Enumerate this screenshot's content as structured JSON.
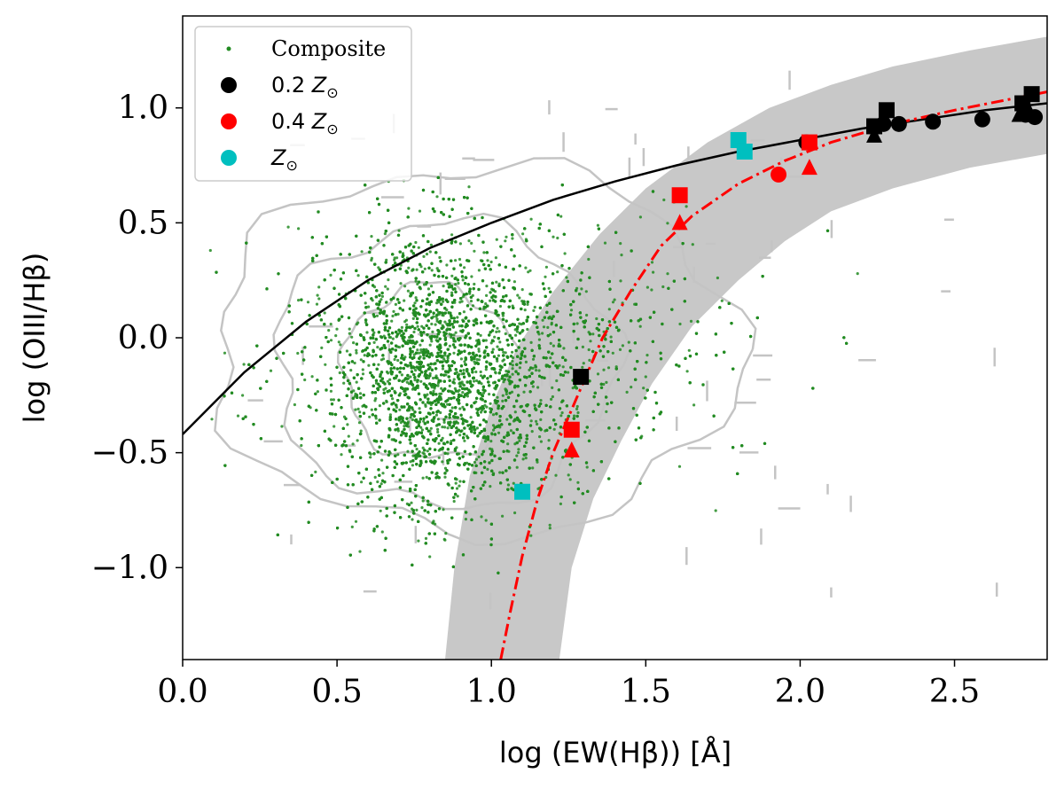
{
  "chart_data": {
    "type": "scatter",
    "xlabel": "log (EW(Hβ)) [Å]",
    "ylabel": "log (OIII/Hβ)",
    "xlim": [
      0.0,
      2.8
    ],
    "ylim": [
      -1.4,
      1.4
    ],
    "xticks": [
      0.0,
      0.5,
      1.0,
      1.5,
      2.0,
      2.5
    ],
    "xtick_labels": [
      "0.0",
      "0.5",
      "1.0",
      "1.5",
      "2.0",
      "2.5"
    ],
    "yticks": [
      -1.0,
      -0.5,
      0.0,
      0.5,
      1.0
    ],
    "ytick_labels": [
      "−1.0",
      "−0.5",
      "0.0",
      "0.5",
      "1.0"
    ],
    "legend_position": "top-left",
    "legend": [
      {
        "label": "Composite",
        "marker": "dot",
        "color": "#228B22"
      },
      {
        "label": "0.2 Z",
        "sub": "⊙",
        "marker": "circle",
        "color": "#000000"
      },
      {
        "label": "0.4 Z",
        "sub": "⊙",
        "marker": "circle",
        "color": "#ff0000"
      },
      {
        "label": "Z",
        "sub": "⊙",
        "marker": "circle",
        "color": "#00bfbf"
      }
    ],
    "composite": {
      "color": "#228B22",
      "count": 9000,
      "center": [
        0.82,
        -0.15
      ],
      "spread": [
        0.17,
        0.3
      ],
      "range_x": [
        0.08,
        2.5
      ],
      "range_y": [
        -1.15,
        0.72
      ],
      "note": "dense cloud of composite galaxies"
    },
    "black_curve": {
      "color": "#000000",
      "style": "solid",
      "points": [
        [
          0.0,
          -0.42
        ],
        [
          0.2,
          -0.15
        ],
        [
          0.4,
          0.07
        ],
        [
          0.6,
          0.25
        ],
        [
          0.8,
          0.39
        ],
        [
          1.0,
          0.5
        ],
        [
          1.2,
          0.6
        ],
        [
          1.4,
          0.68
        ],
        [
          1.6,
          0.75
        ],
        [
          1.8,
          0.81
        ],
        [
          2.0,
          0.86
        ],
        [
          2.2,
          0.91
        ],
        [
          2.4,
          0.95
        ],
        [
          2.6,
          0.99
        ],
        [
          2.8,
          1.02
        ]
      ]
    },
    "red_curve": {
      "color": "#ff0000",
      "style": "dashdot",
      "points": [
        [
          1.03,
          -1.4
        ],
        [
          1.06,
          -1.2
        ],
        [
          1.1,
          -0.95
        ],
        [
          1.15,
          -0.7
        ],
        [
          1.2,
          -0.5
        ],
        [
          1.28,
          -0.25
        ],
        [
          1.36,
          0.0
        ],
        [
          1.45,
          0.2
        ],
        [
          1.55,
          0.4
        ],
        [
          1.65,
          0.53
        ],
        [
          1.8,
          0.67
        ],
        [
          1.95,
          0.77
        ],
        [
          2.1,
          0.85
        ],
        [
          2.3,
          0.93
        ],
        [
          2.5,
          0.99
        ],
        [
          2.8,
          1.07
        ]
      ]
    },
    "band": {
      "color": "#c8c8c8",
      "upper": [
        [
          0.85,
          -1.4
        ],
        [
          0.88,
          -1.0
        ],
        [
          0.93,
          -0.6
        ],
        [
          1.0,
          -0.3
        ],
        [
          1.08,
          -0.05
        ],
        [
          1.2,
          0.2
        ],
        [
          1.35,
          0.45
        ],
        [
          1.5,
          0.65
        ],
        [
          1.7,
          0.85
        ],
        [
          1.9,
          1.0
        ],
        [
          2.1,
          1.1
        ],
        [
          2.3,
          1.18
        ],
        [
          2.55,
          1.25
        ],
        [
          2.8,
          1.31
        ]
      ],
      "lower": [
        [
          1.22,
          -1.4
        ],
        [
          1.26,
          -1.0
        ],
        [
          1.33,
          -0.7
        ],
        [
          1.42,
          -0.45
        ],
        [
          1.52,
          -0.2
        ],
        [
          1.65,
          0.05
        ],
        [
          1.8,
          0.25
        ],
        [
          1.95,
          0.42
        ],
        [
          2.1,
          0.55
        ],
        [
          2.3,
          0.65
        ],
        [
          2.55,
          0.74
        ],
        [
          2.8,
          0.8
        ]
      ]
    },
    "markers": [
      {
        "x": 1.29,
        "y": -0.17,
        "shape": "square",
        "color": "#000000"
      },
      {
        "x": 2.24,
        "y": 0.92,
        "shape": "square",
        "color": "#000000"
      },
      {
        "x": 2.28,
        "y": 0.99,
        "shape": "square",
        "color": "#000000"
      },
      {
        "x": 2.72,
        "y": 1.02,
        "shape": "square",
        "color": "#000000"
      },
      {
        "x": 2.75,
        "y": 1.06,
        "shape": "square",
        "color": "#000000"
      },
      {
        "x": 2.24,
        "y": 0.88,
        "shape": "triangle",
        "color": "#000000"
      },
      {
        "x": 2.71,
        "y": 0.97,
        "shape": "triangle",
        "color": "#000000"
      },
      {
        "x": 2.74,
        "y": 0.99,
        "shape": "triangle",
        "color": "#000000"
      },
      {
        "x": 2.02,
        "y": 0.85,
        "shape": "circle",
        "color": "#000000"
      },
      {
        "x": 2.27,
        "y": 0.93,
        "shape": "circle",
        "color": "#000000"
      },
      {
        "x": 2.32,
        "y": 0.93,
        "shape": "circle",
        "color": "#000000"
      },
      {
        "x": 2.43,
        "y": 0.94,
        "shape": "circle",
        "color": "#000000"
      },
      {
        "x": 2.59,
        "y": 0.95,
        "shape": "circle",
        "color": "#000000"
      },
      {
        "x": 2.73,
        "y": 0.97,
        "shape": "circle",
        "color": "#000000"
      },
      {
        "x": 2.76,
        "y": 0.96,
        "shape": "circle",
        "color": "#000000"
      },
      {
        "x": 1.26,
        "y": -0.4,
        "shape": "square",
        "color": "#ff0000"
      },
      {
        "x": 1.61,
        "y": 0.62,
        "shape": "square",
        "color": "#ff0000"
      },
      {
        "x": 2.03,
        "y": 0.85,
        "shape": "square",
        "color": "#ff0000"
      },
      {
        "x": 1.26,
        "y": -0.49,
        "shape": "triangle",
        "color": "#ff0000"
      },
      {
        "x": 1.61,
        "y": 0.5,
        "shape": "triangle",
        "color": "#ff0000"
      },
      {
        "x": 2.03,
        "y": 0.74,
        "shape": "triangle",
        "color": "#ff0000"
      },
      {
        "x": 1.93,
        "y": 0.71,
        "shape": "circle",
        "color": "#ff0000"
      },
      {
        "x": 1.1,
        "y": -0.67,
        "shape": "square",
        "color": "#00bfbf"
      },
      {
        "x": 1.8,
        "y": 0.86,
        "shape": "square",
        "color": "#00bfbf"
      },
      {
        "x": 1.82,
        "y": 0.81,
        "shape": "square",
        "color": "#00bfbf"
      }
    ]
  }
}
